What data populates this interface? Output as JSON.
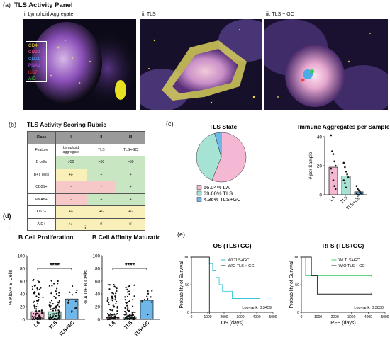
{
  "panel_a": {
    "letter": "(a)",
    "title": "TLS Activity Panel",
    "images": [
      {
        "label": "i.",
        "name": "Lymphoid Aggregate"
      },
      {
        "label": "ii.",
        "name": "TLS"
      },
      {
        "label": "iii.",
        "name": "TLS + GC"
      }
    ],
    "legend": [
      {
        "marker": "CD4",
        "color": "#f2d23c"
      },
      {
        "marker": "CD20",
        "color": "#ff5f8a"
      },
      {
        "marker": "CD21",
        "color": "#3fa7ff"
      },
      {
        "marker": "PNAd",
        "color": "#c05cff"
      },
      {
        "marker": "Ki67",
        "color": "#ff3b2f"
      },
      {
        "marker": "AID",
        "color": "#4fe04f"
      }
    ]
  },
  "panel_b": {
    "letter": "(b)",
    "title": "TLS Activity Scoring Rubric",
    "header": [
      "Class",
      "I",
      "II",
      "III"
    ],
    "rows": [
      {
        "cells": [
          "Feature",
          "Lymphoid aggregate",
          "TLS",
          "TLS+GC"
        ],
        "colors": [
          "white",
          "white",
          "white",
          "white"
        ]
      },
      {
        "cells": [
          "B cells",
          ">50",
          ">50",
          ">50"
        ],
        "colors": [
          "white",
          "green",
          "green",
          "green"
        ]
      },
      {
        "cells": [
          "B+T cells",
          "+/-",
          "+",
          "+"
        ],
        "colors": [
          "white",
          "yellow",
          "green",
          "green"
        ]
      },
      {
        "cells": [
          "CD21+",
          "-",
          "-",
          "+"
        ],
        "colors": [
          "white",
          "pink",
          "pink",
          "green"
        ]
      },
      {
        "cells": [
          "PNAd+",
          "-",
          "+",
          "+"
        ],
        "colors": [
          "white",
          "pink",
          "green",
          "green"
        ]
      },
      {
        "cells": [
          "Ki67+",
          "+/-",
          "+/-",
          "+/-"
        ],
        "colors": [
          "white",
          "yellow",
          "yellow",
          "yellow"
        ]
      },
      {
        "cells": [
          "AID+",
          "+/-",
          "+/-",
          "+/-"
        ],
        "colors": [
          "white",
          "yellow",
          "yellow",
          "yellow"
        ]
      }
    ]
  },
  "panel_c": {
    "letter": "(c)",
    "pie": {
      "title": "TLS State",
      "slices": [
        {
          "label": "LA",
          "percent": 56.04,
          "color": "#f5b8d4",
          "legend": "56.04% LA"
        },
        {
          "label": "TLS",
          "percent": 39.6,
          "color": "#a7e3d4",
          "legend": "39.60% TLS"
        },
        {
          "label": "TLS+GC",
          "percent": 4.36,
          "color": "#6fb7e8",
          "legend": "4.36% TLS+GC"
        }
      ]
    },
    "bar": {
      "title": "Immune Aggregates per Sample",
      "ylabel": "# per Sample",
      "ylim": [
        0,
        40
      ],
      "yticks": [
        "0",
        "20",
        "40"
      ],
      "categories": [
        "LA",
        "TLS",
        "TLS+GC"
      ],
      "values": [
        19,
        13,
        2
      ],
      "colors": [
        "#f5b8d4",
        "#a7e3d4",
        "#6fb7e8"
      ],
      "points": [
        [
          41,
          30,
          28,
          23,
          20,
          18,
          15,
          10,
          6,
          4
        ],
        [
          22,
          19,
          16,
          14,
          12,
          10,
          8,
          5
        ],
        [
          6,
          4,
          3,
          2,
          1,
          1,
          0,
          0
        ]
      ]
    }
  },
  "panel_d": {
    "letter": "(d)",
    "charts": [
      {
        "label": "i.",
        "title": "B Cell Proliferation",
        "ylabel": "% Ki67+ B Cells",
        "ylim": [
          0,
          100
        ],
        "yticks": [
          "0",
          "20",
          "40",
          "60",
          "80",
          "100"
        ],
        "categories": [
          "LA",
          "TLS",
          "TLS+GC"
        ],
        "values": [
          12,
          12,
          32
        ],
        "colors": [
          "#f5b8d4",
          "#a7e3d4",
          "#6fb7e8"
        ],
        "significance": "****"
      },
      {
        "label": "ii.",
        "title": "B Cell Affinity Maturation",
        "ylabel": "% AID+ B Cells",
        "ylim": [
          0,
          100
        ],
        "yticks": [
          "0",
          "20",
          "40",
          "60",
          "80",
          "100"
        ],
        "categories": [
          "LA",
          "TLS",
          "TLS+GC"
        ],
        "values": [
          3,
          4,
          30
        ],
        "colors": [
          "#f5b8d4",
          "#a7e3d4",
          "#6fb7e8"
        ],
        "significance": "****"
      }
    ]
  },
  "panel_e": {
    "letter": "(e)",
    "charts": [
      {
        "title": "OS (TLS+GC)",
        "xlabel": "OS (days)",
        "ylabel": "Probability of Survival",
        "xlim": [
          0,
          5000
        ],
        "ylim": [
          0,
          100
        ],
        "xticks": [
          "0",
          "1000",
          "2000",
          "3000",
          "4000",
          "5000"
        ],
        "yticks": [
          "0",
          "50",
          "100"
        ],
        "legend": [
          "W/ TLS+GC",
          "W/O TLS + GC"
        ],
        "logrank": "Log-rank: 0.3459",
        "series": [
          {
            "name": "W/ TLS+GC",
            "color": "#3fc5d8",
            "steps": [
              [
                0,
                100
              ],
              [
                1100,
                100
              ],
              [
                1100,
                88
              ],
              [
                1300,
                88
              ],
              [
                1300,
                75
              ],
              [
                1500,
                75
              ],
              [
                1500,
                63
              ],
              [
                1700,
                63
              ],
              [
                1700,
                50
              ],
              [
                1900,
                50
              ],
              [
                1900,
                38
              ],
              [
                2500,
                38
              ],
              [
                2500,
                25
              ],
              [
                4200,
                25
              ]
            ]
          },
          {
            "name": "W/O TLS + GC",
            "color": "#222222",
            "steps": [
              [
                0,
                100
              ],
              [
                1100,
                100
              ],
              [
                1100,
                0
              ]
            ]
          }
        ]
      },
      {
        "title": "RFS (TLS+GC)",
        "xlabel": "RFS (days)",
        "ylabel": "Probability of Survival",
        "xlim": [
          0,
          5000
        ],
        "ylim": [
          0,
          100
        ],
        "xticks": [
          "0",
          "1000",
          "2000",
          "3000",
          "4000",
          "5000"
        ],
        "yticks": [
          "0",
          "50",
          "100"
        ],
        "legend": [
          "W/ TLS+GC",
          "W/O TLS + GC"
        ],
        "logrank": "Log-rank: 0.3830",
        "series": [
          {
            "name": "W/ TLS+GC",
            "color": "#4ccb72",
            "steps": [
              [
                0,
                100
              ],
              [
                250,
                100
              ],
              [
                250,
                66
              ],
              [
                4200,
                66
              ]
            ]
          },
          {
            "name": "W/O TLS + GC",
            "color": "#222222",
            "steps": [
              [
                0,
                100
              ],
              [
                600,
                100
              ],
              [
                600,
                66
              ],
              [
                950,
                66
              ],
              [
                950,
                33
              ],
              [
                4200,
                33
              ]
            ]
          }
        ]
      }
    ]
  }
}
